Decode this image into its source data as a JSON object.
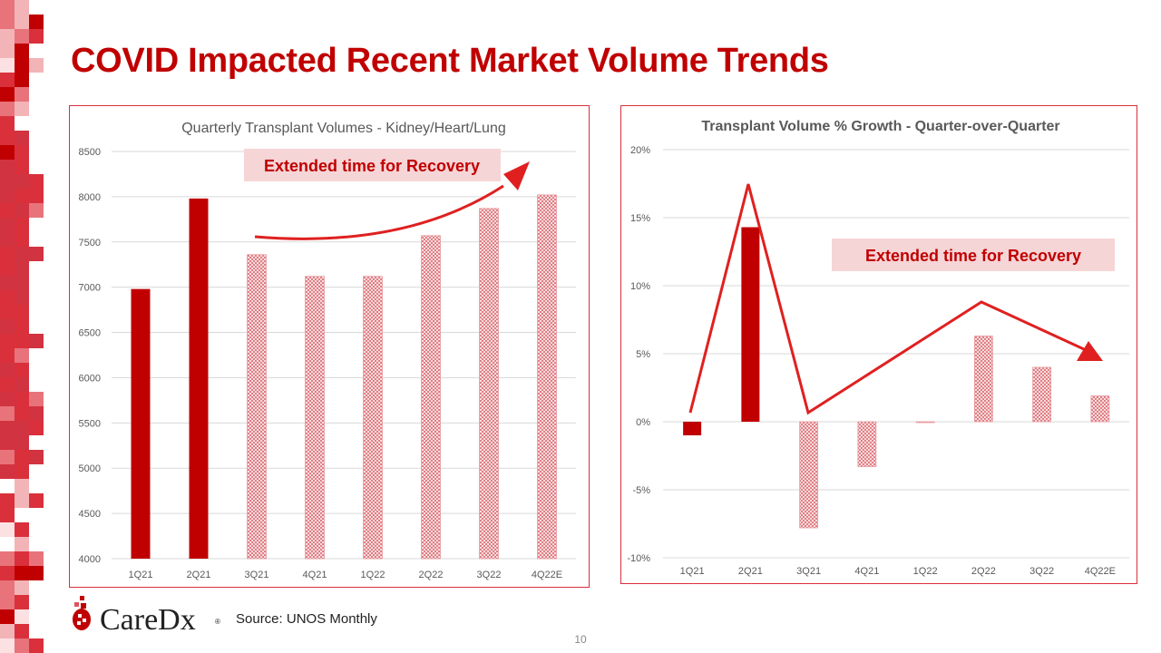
{
  "slide": {
    "title": "COVID Impacted Recent Market Volume Trends",
    "source": "Source: UNOS Monthly",
    "page_number": "10",
    "logo_text": "CareDx",
    "logo_mark": "®"
  },
  "colors": {
    "accent": "#c00000",
    "bar_solid": "#c00000",
    "bar_pattern": "#e8a0a4",
    "annotation_bg": "#f6d5d7",
    "arrow": "#e02020",
    "grid": "#d9d9d9",
    "axis_text": "#595959"
  },
  "chart_data": [
    {
      "type": "bar",
      "title": "Quarterly Transplant Volumes - Kidney/Heart/Lung",
      "categories": [
        "1Q21",
        "2Q21",
        "3Q21",
        "4Q21",
        "1Q22",
        "2Q22",
        "3Q22",
        "4Q22E"
      ],
      "values": [
        6980,
        7980,
        7360,
        7120,
        7120,
        7570,
        7870,
        8020
      ],
      "bar_style": [
        "solid",
        "solid",
        "pattern",
        "pattern",
        "pattern",
        "pattern",
        "pattern",
        "pattern"
      ],
      "ylim": [
        4000,
        8500
      ],
      "yticks": [
        "4000",
        "4500",
        "5000",
        "5500",
        "6000",
        "6500",
        "7000",
        "7500",
        "8000",
        "8500"
      ],
      "grid": true,
      "annotation": "Extended time for Recovery"
    },
    {
      "type": "bar",
      "title": "Transplant Volume % Growth - Quarter-over-Quarter",
      "categories": [
        "1Q21",
        "2Q21",
        "3Q21",
        "4Q21",
        "1Q22",
        "2Q22",
        "3Q22",
        "4Q22E"
      ],
      "values": [
        -1.0,
        14.3,
        -7.8,
        -3.3,
        0.0,
        6.3,
        4.0,
        1.9
      ],
      "value_unit": "%",
      "bar_style": [
        "solid",
        "solid",
        "pattern",
        "pattern",
        "pattern",
        "pattern",
        "pattern",
        "pattern"
      ],
      "ylim": [
        -10,
        20
      ],
      "yticks": [
        "-10%",
        "-5%",
        "0%",
        "5%",
        "10%",
        "15%",
        "20%"
      ],
      "grid": true,
      "annotation": "Extended time for Recovery"
    }
  ]
}
